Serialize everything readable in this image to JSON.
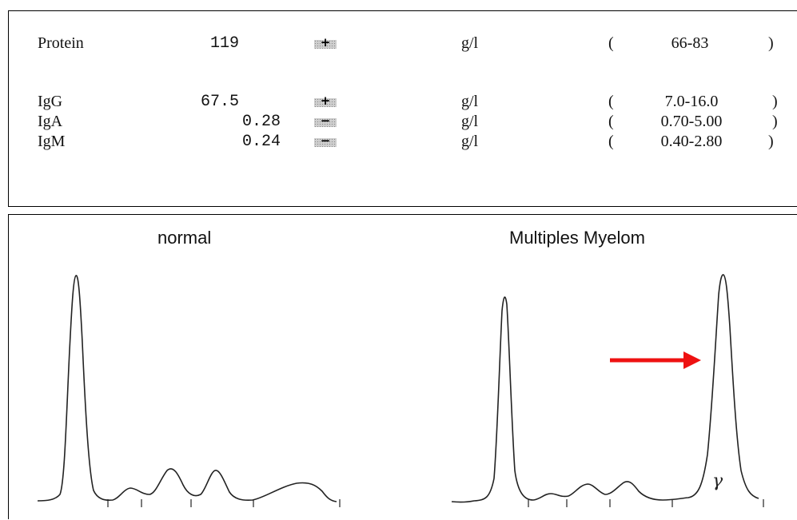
{
  "lab_results": {
    "rows": [
      {
        "analyte": "Protein",
        "value": "119",
        "flag": "+",
        "unit": "g/l",
        "open": "(",
        "range": "66-83",
        "close": ")"
      },
      {
        "analyte": "IgG",
        "value": "67.5",
        "flag": "+",
        "unit": "g/l",
        "open": "(",
        "range": "7.0-16.0",
        "close": ")"
      },
      {
        "analyte": "IgA",
        "value": "0.28",
        "flag": "−",
        "unit": "g/l",
        "open": "(",
        "range": "0.70-5.00",
        "close": ")"
      },
      {
        "analyte": "IgM",
        "value": "0.24",
        "flag": "−",
        "unit": "g/l",
        "open": "(",
        "range": "0.40-2.80",
        "close": ")"
      }
    ]
  },
  "electrophoresis": {
    "left_title": "normal",
    "right_title": "Multiples Myelom",
    "gamma_label": "γ",
    "arrow_color": "#ee1111"
  }
}
